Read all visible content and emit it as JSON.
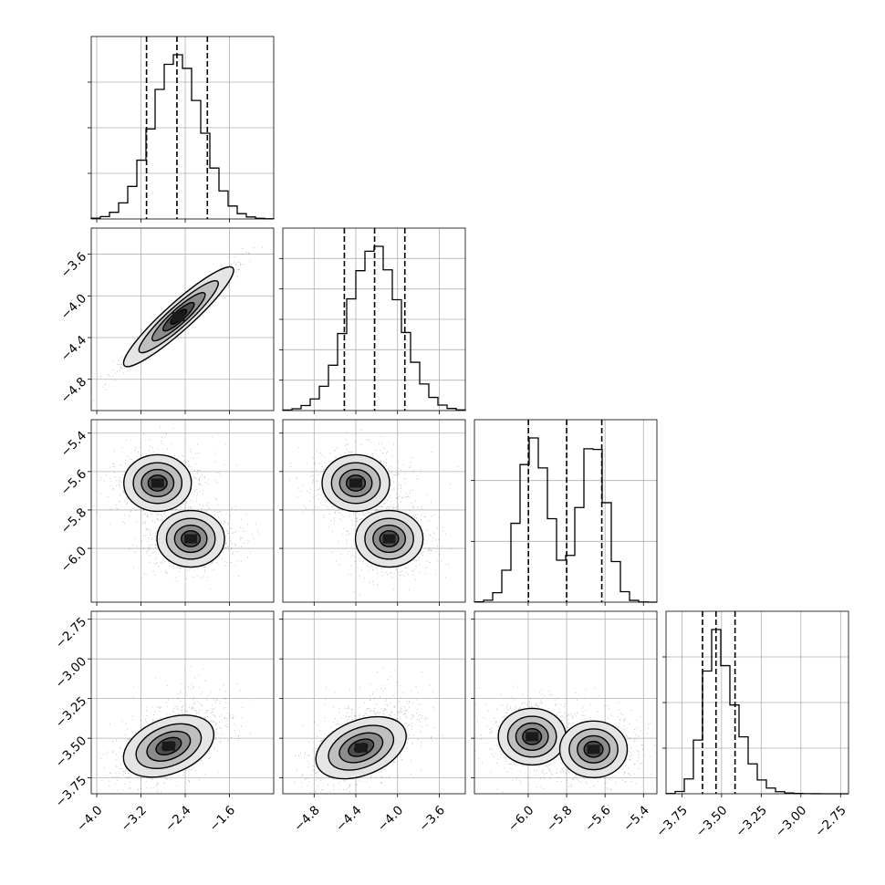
{
  "chart_data": {
    "type": "corner",
    "parameters": [
      {
        "lim": [
          -4.1,
          -0.8
        ],
        "ticks": [
          -4.0,
          -3.2,
          -2.4,
          -1.6
        ],
        "tick_labels": [
          "−4.0",
          "−3.2",
          "−2.4",
          "−1.6"
        ],
        "mode": "gauss",
        "mu": -2.55,
        "sigma": 0.45,
        "quantiles": [
          -3.1,
          -2.55,
          -2.0
        ],
        "hist_ticks_y": 4
      },
      {
        "lim": [
          -5.1,
          -3.35
        ],
        "ticks": [
          -4.8,
          -4.4,
          -4.0,
          -3.6
        ],
        "tick_labels": [
          "−4.8",
          "−4.4",
          "−4.0",
          "−3.6"
        ],
        "mode": "gauss",
        "mu": -4.22,
        "sigma": 0.25,
        "quantiles": [
          -4.51,
          -4.22,
          -3.93
        ],
        "hist_ticks_y": 6
      },
      {
        "lim": [
          -6.28,
          -5.33
        ],
        "ticks": [
          -6.0,
          -5.8,
          -5.6,
          -5.4
        ],
        "tick_labels": [
          "−6.0",
          "−5.8",
          "−5.6",
          "−5.4"
        ],
        "mode": "bimodal",
        "modes": [
          {
            "mu": -5.97,
            "sigma": 0.08
          },
          {
            "mu": -5.66,
            "sigma": 0.07
          }
        ],
        "quantiles": [
          -5.999,
          -5.8,
          -5.617
        ],
        "hist_ticks_y": 3
      },
      {
        "lim": [
          -3.85,
          -2.7
        ],
        "ticks": [
          -3.75,
          -3.5,
          -3.25,
          -3.0,
          -2.75
        ],
        "tick_labels": [
          "−3.75",
          "−3.50",
          "−3.25",
          "−3.00",
          "−2.75"
        ],
        "mode": "skewed",
        "mu": -3.53,
        "sigma": 0.08,
        "quantiles": [
          -3.62,
          -3.535,
          -3.415
        ],
        "hist_ticks_y": 4
      }
    ],
    "panels_2d": [
      {
        "row": 1,
        "col": 0,
        "centers": [
          [
            -2.52,
            -4.2
          ]
        ],
        "shape": "elongated",
        "corr": 0.97
      },
      {
        "row": 2,
        "col": 0,
        "centers": [
          [
            -2.9,
            -5.66
          ],
          [
            -2.3,
            -5.95
          ]
        ],
        "shape": "blobs"
      },
      {
        "row": 2,
        "col": 1,
        "centers": [
          [
            -4.4,
            -5.66
          ],
          [
            -4.08,
            -5.95
          ]
        ],
        "shape": "blobs"
      },
      {
        "row": 3,
        "col": 0,
        "centers": [
          [
            -2.7,
            -3.55
          ]
        ],
        "shape": "tilted"
      },
      {
        "row": 3,
        "col": 1,
        "centers": [
          [
            -4.35,
            -3.56
          ]
        ],
        "shape": "tilted"
      },
      {
        "row": 3,
        "col": 2,
        "centers": [
          [
            -5.98,
            -3.49
          ],
          [
            -5.66,
            -3.57
          ]
        ],
        "shape": "blobs"
      }
    ],
    "grid": true,
    "quantile_lines": "dashed",
    "hist_style": "step",
    "scatter_color": "#000000",
    "contour_fill_colors": [
      "#ffffff",
      "#e5e5e5",
      "#bfbfbf",
      "#8c8c8c",
      "#4d4d4d",
      "#1a1a1a"
    ]
  }
}
